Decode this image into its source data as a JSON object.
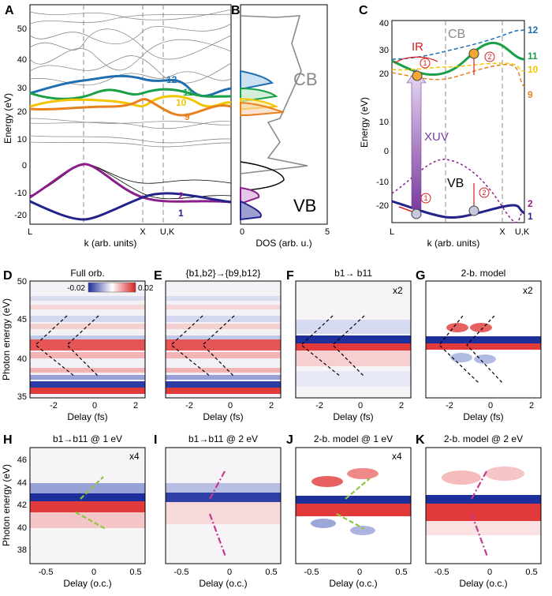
{
  "panels": {
    "A": {
      "letter": "A",
      "ylabel": "Energy (eV)",
      "xlabel": "k (arb. units)",
      "yticks": [
        "50",
        "40",
        "30",
        "20",
        "10",
        "0",
        "-10",
        "-20"
      ],
      "xticks": [
        "L",
        "X",
        "U,K"
      ],
      "band_labels": [
        "12",
        "11",
        "10",
        "9",
        "2",
        "1"
      ]
    },
    "B": {
      "letter": "B",
      "xlabel": "DOS (arb. u.)",
      "xticks": [
        "0",
        "5"
      ],
      "cb": "CB",
      "vb": "VB"
    },
    "C": {
      "letter": "C",
      "ylabel": "Energy (eV)",
      "xlabel": "k (arb. units)",
      "yticks": [
        "40",
        "30",
        "20",
        "10",
        "0",
        "-10",
        "-20"
      ],
      "xticks": [
        "L",
        "X",
        "U,K"
      ],
      "cb": "CB",
      "vb": "VB",
      "ir": "IR",
      "xuv": "XUV",
      "step1": "1",
      "step2": "2",
      "band_labels": [
        "12",
        "11",
        "10",
        "9",
        "2",
        "1"
      ]
    },
    "D": {
      "letter": "D",
      "title": "Full orb.",
      "cbar_min": "-0.02",
      "cbar_max": "0.02"
    },
    "E": {
      "letter": "E",
      "title": "{b1,b2}→{b9,b12}"
    },
    "F": {
      "letter": "F",
      "title": "b1→ b11",
      "scale": "x2"
    },
    "G": {
      "letter": "G",
      "title": "2-b. model",
      "scale": "x2"
    },
    "H": {
      "letter": "H",
      "title": "b1→b11   @ 1 eV",
      "scale": "x4"
    },
    "I": {
      "letter": "I",
      "title": "b1→b11   @ 2 eV"
    },
    "J": {
      "letter": "J",
      "title": "2-b. model @ 1 eV",
      "scale": "x4"
    },
    "K": {
      "letter": "K",
      "title": "2-b. model @ 2 eV"
    }
  },
  "row2": {
    "ylabel": "Photon energy (eV)",
    "xlabel": "Delay (fs)",
    "yticks": [
      "50",
      "45",
      "40",
      "35"
    ],
    "xticks": [
      "-2",
      "0",
      "2"
    ]
  },
  "row3": {
    "ylabel": "Photon energy (eV)",
    "xlabel": "Delay (o.c.)",
    "yticks": [
      "46",
      "44",
      "42",
      "40",
      "38"
    ],
    "xticks": [
      "-0.5",
      "0",
      "0.5"
    ]
  },
  "colors": {
    "b12": "#1f6fb0",
    "b11": "#17a045",
    "b10": "#f2c500",
    "b9": "#e8801e",
    "b2": "#8b1e8b",
    "b1": "#23238c",
    "red": "#d62020",
    "blue": "#1d2f9a"
  }
}
